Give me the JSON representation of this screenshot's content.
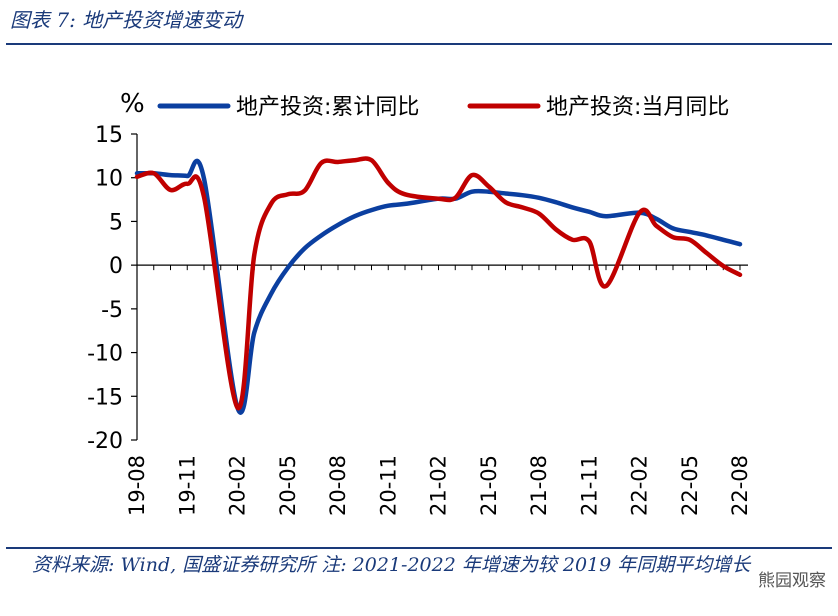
{
  "figure_title": "图表 7:  地产投资增速变动",
  "footnote": "资料来源: Wind, 国盛证券研究所  注: 2021-2022 年增速为较 2019 年同期平均增长",
  "watermark": "熊园观察",
  "chart_data": {
    "type": "line",
    "unit_label": "%",
    "ylim": [
      -20,
      15
    ],
    "yticks": [
      "15",
      "10",
      "5",
      "0",
      "-5",
      "-10",
      "-15",
      "-20"
    ],
    "ytick_values": [
      15,
      10,
      5,
      0,
      -5,
      -10,
      -15,
      -20
    ],
    "x": [
      "19-08",
      "19-09",
      "19-10",
      "19-11",
      "19-12",
      "20-01",
      "20-02",
      "20-03",
      "20-04",
      "20-05",
      "20-06",
      "20-07",
      "20-08",
      "20-09",
      "20-10",
      "20-11",
      "20-12",
      "21-01",
      "21-02",
      "21-03",
      "21-04",
      "21-05",
      "21-06",
      "21-07",
      "21-08",
      "21-09",
      "21-10",
      "21-11",
      "21-12",
      "22-01",
      "22-02",
      "22-03",
      "22-04",
      "22-05",
      "22-06",
      "22-07",
      "22-08"
    ],
    "xtick_labels": [
      "19-08",
      "19-11",
      "20-02",
      "20-05",
      "20-08",
      "20-11",
      "21-02",
      "21-05",
      "21-08",
      "21-11",
      "22-02",
      "22-05",
      "22-08"
    ],
    "legend_position": "top",
    "series": [
      {
        "name": "地产投资:累计同比",
        "color": "#0b3fa0",
        "values": [
          10.5,
          10.5,
          10.3,
          10.2,
          9.9,
          null,
          -16.3,
          -7.7,
          -3.3,
          -0.3,
          1.9,
          3.4,
          4.6,
          5.6,
          6.3,
          6.8,
          7.0,
          null,
          7.6,
          7.6,
          8.4,
          8.4,
          8.2,
          8.0,
          7.7,
          7.2,
          6.6,
          6.1,
          5.6,
          null,
          6.0,
          5.3,
          4.2,
          3.8,
          3.4,
          2.9,
          2.4
        ]
      },
      {
        "name": "地产投资:当月同比",
        "color": "#c00000",
        "values": [
          10.1,
          10.5,
          8.6,
          9.3,
          7.8,
          null,
          -16.3,
          1.2,
          7.0,
          8.1,
          8.5,
          11.7,
          11.8,
          12.0,
          12.0,
          9.4,
          8.1,
          null,
          7.6,
          7.7,
          10.3,
          9.0,
          7.2,
          6.6,
          5.9,
          4.1,
          2.9,
          2.7,
          -2.4,
          null,
          6.0,
          4.5,
          3.2,
          2.9,
          1.4,
          -0.1,
          -1.1
        ]
      }
    ]
  }
}
